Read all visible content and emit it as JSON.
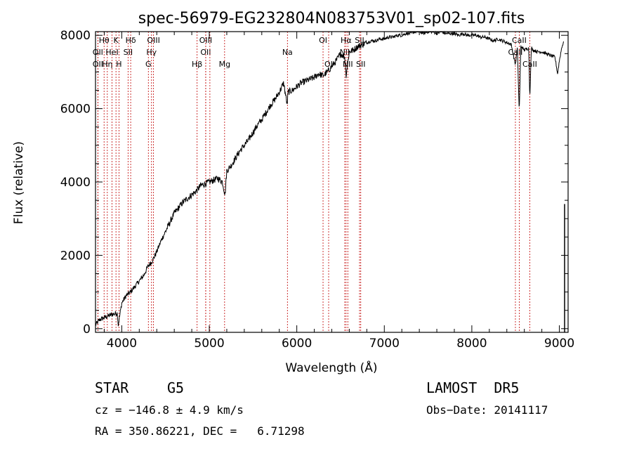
{
  "chart_data": {
    "type": "line",
    "title": "spec-56979-EG232804N083753V01_sp02-107.fits",
    "xlabel": "Wavelength (Å)",
    "ylabel": "Flux (relative)",
    "xlim": [
      3700,
      9100
    ],
    "ylim": [
      -100,
      8100
    ],
    "xticks": [
      4000,
      5000,
      6000,
      7000,
      8000,
      9000
    ],
    "yticks": [
      0,
      2000,
      4000,
      6000,
      8000
    ],
    "grid": false,
    "series": [
      {
        "x": [
          3700,
          3750,
          3800,
          3850,
          3900,
          3950,
          3960,
          4000,
          4050,
          4100,
          4150,
          4200,
          4250,
          4300,
          4350,
          4400,
          4450,
          4500,
          4550,
          4600,
          4650,
          4700,
          4750,
          4800,
          4850,
          4900,
          4950,
          5000,
          5050,
          5100,
          5150,
          5180,
          5200,
          5250,
          5300,
          5350,
          5400,
          5450,
          5500,
          5550,
          5600,
          5650,
          5700,
          5750,
          5800,
          5850,
          5890,
          5900,
          5950,
          6000,
          6050,
          6100,
          6150,
          6200,
          6250,
          6300,
          6350,
          6400,
          6450,
          6500,
          6550,
          6563,
          6600,
          6650,
          6700,
          6750,
          6800,
          6850,
          6900,
          6950,
          7000,
          7050,
          7100,
          7150,
          7200,
          7250,
          7300,
          7350,
          7400,
          7450,
          7500,
          7550,
          7600,
          7650,
          7700,
          7750,
          7800,
          7850,
          7900,
          7950,
          8000,
          8050,
          8100,
          8150,
          8200,
          8250,
          8300,
          8350,
          8400,
          8450,
          8498,
          8520,
          8542,
          8560,
          8600,
          8650,
          8662,
          8680,
          8700,
          8750,
          8800,
          8850,
          8900,
          8950,
          8980,
          9000,
          9030,
          9050
        ],
        "y": [
          100,
          250,
          300,
          350,
          400,
          420,
          100,
          700,
          900,
          1000,
          1150,
          1300,
          1450,
          1700,
          1850,
          2100,
          2400,
          2650,
          2900,
          3150,
          3300,
          3450,
          3550,
          3650,
          3750,
          3900,
          3950,
          4000,
          4050,
          4100,
          4000,
          3650,
          4300,
          4450,
          4650,
          4850,
          5000,
          5150,
          5350,
          5550,
          5700,
          5900,
          6100,
          6250,
          6450,
          6700,
          6100,
          6450,
          6500,
          6600,
          6700,
          6750,
          6800,
          6850,
          6950,
          6900,
          7000,
          7150,
          7300,
          7500,
          7400,
          6900,
          7550,
          7600,
          7700,
          7750,
          7800,
          7850,
          7850,
          7900,
          7900,
          7950,
          7950,
          8000,
          8000,
          8050,
          8050,
          8100,
          8100,
          8050,
          8100,
          8100,
          8050,
          8100,
          8050,
          8050,
          8050,
          8000,
          8050,
          8000,
          8000,
          8000,
          7950,
          7950,
          7900,
          7850,
          7900,
          7850,
          7800,
          7750,
          7200,
          7650,
          5900,
          7700,
          7600,
          7650,
          6300,
          7650,
          7600,
          7550,
          7550,
          7500,
          7450,
          7400,
          6950,
          7300,
          7700,
          7800
        ]
      }
    ],
    "line_markers": [
      {
        "x": 3798,
        "label": "Hθ",
        "row": 0
      },
      {
        "x": 3727,
        "label": "OII",
        "row": 1
      },
      {
        "x": 3727,
        "label": "OII",
        "row": 2
      },
      {
        "x": 3835,
        "label": "Hη",
        "row": 2
      },
      {
        "x": 3889,
        "label": "HeI",
        "row": 1
      },
      {
        "x": 3934,
        "label": "K",
        "row": 0
      },
      {
        "x": 3968,
        "label": "H",
        "row": 2
      },
      {
        "x": 4072,
        "label": "SII",
        "row": 1
      },
      {
        "x": 4102,
        "label": "Hδ",
        "row": 0
      },
      {
        "x": 4340,
        "label": "Hγ",
        "row": 1
      },
      {
        "x": 4304,
        "label": "G",
        "row": 2
      },
      {
        "x": 4363,
        "label": "OIII",
        "row": 0
      },
      {
        "x": 4861,
        "label": "Hβ",
        "row": 2
      },
      {
        "x": 4959,
        "label": "OIII",
        "row": 0
      },
      {
        "x": 4959,
        "label": "OII",
        "row": 1
      },
      {
        "x": 5007,
        "label": "",
        "row": 0
      },
      {
        "x": 5175,
        "label": "Mg",
        "row": 2
      },
      {
        "x": 5893,
        "label": "Na",
        "row": 1
      },
      {
        "x": 6300,
        "label": "OI",
        "row": 0
      },
      {
        "x": 6364,
        "label": "OI",
        "row": 2
      },
      {
        "x": 6548,
        "label": "NII",
        "row": 1
      },
      {
        "x": 6563,
        "label": "Hα",
        "row": 0
      },
      {
        "x": 6583,
        "label": "NII",
        "row": 2
      },
      {
        "x": 6717,
        "label": "SII",
        "row": 0
      },
      {
        "x": 6731,
        "label": "SII",
        "row": 2
      },
      {
        "x": 8498,
        "label": "CaII",
        "row": 1
      },
      {
        "x": 8542,
        "label": "CaII",
        "row": 0
      },
      {
        "x": 8662,
        "label": "CaII",
        "row": 2
      }
    ]
  },
  "info": {
    "class": "STAR",
    "subclass": "G5",
    "survey": "LAMOST  DR5",
    "cz": "cz = −146.8 ± 4.9 km/s",
    "obs_date": "Obs−Date: 20141117",
    "coords": "RA = 350.86221, DEC =   6.71298"
  },
  "colors": {
    "spectrum": "#000000",
    "marker": "#c00000",
    "axes": "#000000"
  }
}
